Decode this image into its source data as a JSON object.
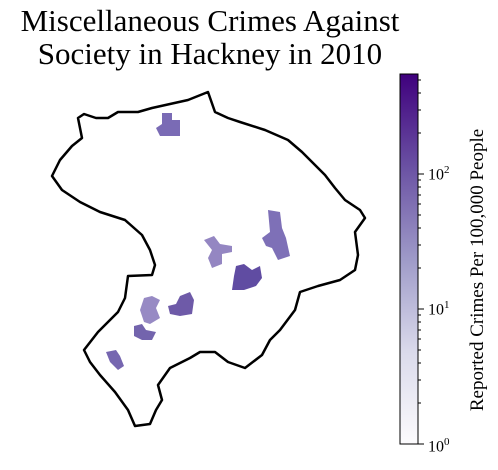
{
  "title": {
    "line1": "Miscellaneous Crimes Against",
    "line2": "Society in Hackney in 2010"
  },
  "colorbar": {
    "label": "Reported Crimes Per 100,000 People",
    "scale": "log",
    "range": [
      1,
      450
    ],
    "ticks": [
      {
        "base": "10",
        "exp": "0",
        "value": 1
      },
      {
        "base": "10",
        "exp": "1",
        "value": 10
      },
      {
        "base": "10",
        "exp": "2",
        "value": 100
      }
    ],
    "color_low": "#fcfbfd",
    "color_high": "#3f007d"
  },
  "map": {
    "boundary_color": "#000000",
    "regions": [
      {
        "name": "north",
        "value": 45
      },
      {
        "name": "east",
        "value": 40
      },
      {
        "name": "centre",
        "value": 25
      },
      {
        "name": "centre-south",
        "value": 75
      },
      {
        "name": "west",
        "value": 22
      },
      {
        "name": "west-lower",
        "value": 50
      },
      {
        "name": "south-centre",
        "value": 55
      },
      {
        "name": "south-west",
        "value": 50
      }
    ]
  }
}
